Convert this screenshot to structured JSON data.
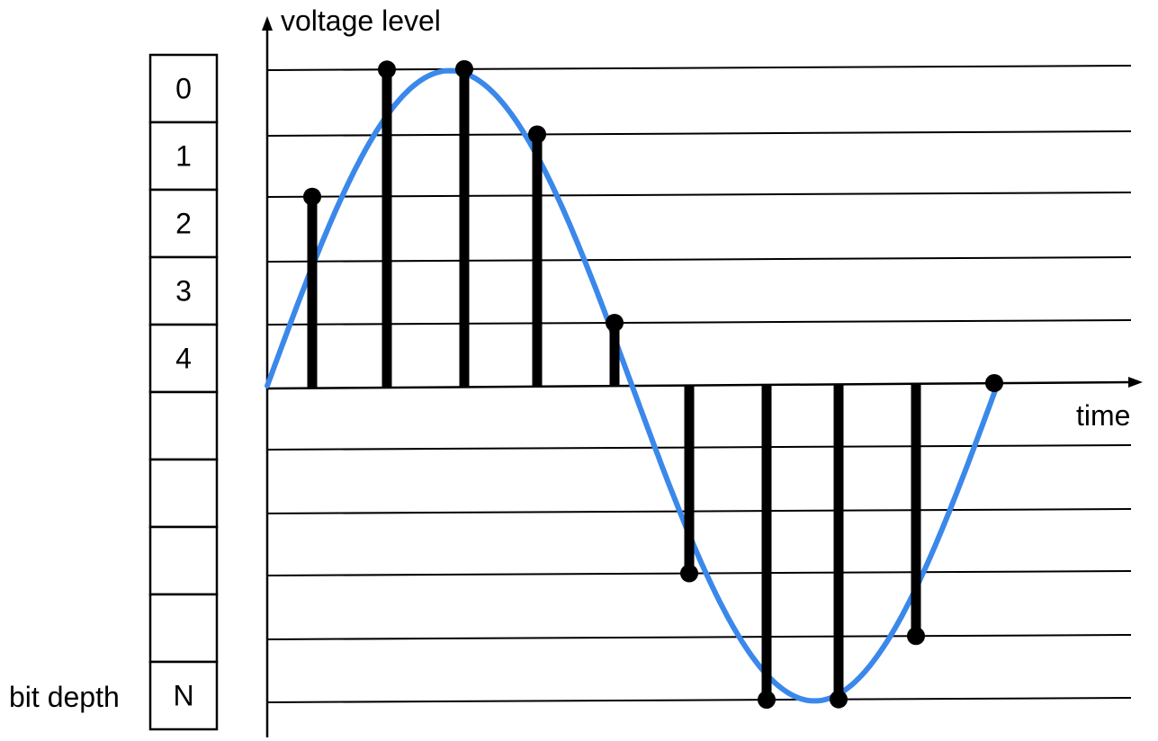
{
  "labels": {
    "y_axis": "voltage level",
    "x_axis": "time",
    "bit_depth": "bit depth"
  },
  "levels": [
    "0",
    "1",
    "2",
    "3",
    "4",
    "",
    "",
    "",
    "",
    "N"
  ],
  "colors": {
    "wave": "#3b88eb",
    "stem": "#000000",
    "line": "#000000",
    "background": "#ffffff"
  },
  "samples": [
    {
      "t": 1,
      "level": 2
    },
    {
      "t": 2,
      "level": 0
    },
    {
      "t": 3,
      "level": 0
    },
    {
      "t": 4,
      "level": 1
    },
    {
      "t": 5,
      "level": 4
    },
    {
      "t": 6,
      "level": 7
    },
    {
      "t": 7,
      "level": 9
    },
    {
      "t": 8,
      "level": 9
    },
    {
      "t": 9,
      "level": 8
    },
    {
      "t": 10,
      "level": 5
    }
  ]
}
